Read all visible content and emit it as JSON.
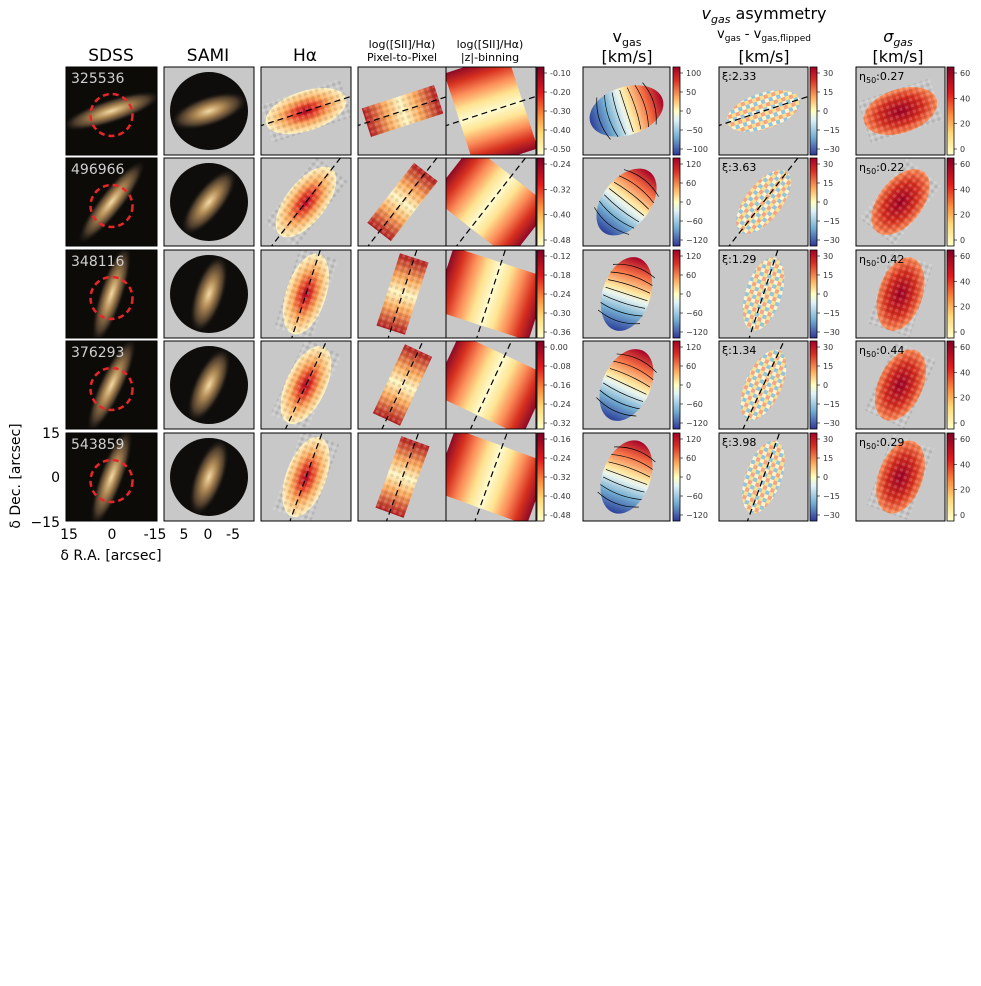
{
  "headers": {
    "sdss": "SDSS",
    "sami": "SAMI",
    "halpha": "Hα",
    "ratio_pp_l1": "log([SII]/Hα)",
    "ratio_pp_l2": "Pixel-to-Pixel",
    "ratio_z_l1": "log([SII]/Hα)",
    "ratio_z_l2": "|z|-binning",
    "vgas_l1": "v",
    "vgas_sub": "gas",
    "vgas_l2": "[km/s]",
    "asym_l1_sym": "v",
    "asym_l1_sub": "gas",
    "asym_l1_rest": " asymmetry",
    "asym_l2": "v",
    "asym_l2_sub1": "gas",
    "asym_l2_mid": " - v",
    "asym_l2_sub2": "gas,flipped",
    "asym_l3": "[km/s]",
    "sigma_l1": "σ",
    "sigma_sub": "gas",
    "sigma_l2": "[km/s]"
  },
  "axes": {
    "y_label": "δ Dec. [arcsec]",
    "x_label": "δ R.A. [arcsec]",
    "sdss_y_ticks": [
      "15",
      "0",
      "−15"
    ],
    "sdss_x_ticks": [
      "15",
      "0",
      "-15"
    ],
    "sami_x_ticks": [
      "5",
      "0",
      "-5"
    ]
  },
  "galaxies": [
    {
      "id": "325536",
      "xi": "ξ:2.33",
      "eta": "η",
      "eta_sub": "50",
      "eta_val": ":0.27",
      "pa": -18,
      "axis": 0.42
    },
    {
      "id": "496966",
      "xi": "ξ:3.63",
      "eta": "η",
      "eta_sub": "50",
      "eta_val": ":0.22",
      "pa": -52,
      "axis": 0.45
    },
    {
      "id": "348116",
      "xi": "ξ:1.29",
      "eta": "η",
      "eta_sub": "50",
      "eta_val": ":0.42",
      "pa": -72,
      "axis": 0.5
    },
    {
      "id": "376293",
      "xi": "ξ:1.34",
      "eta": "η",
      "eta_sub": "50",
      "eta_val": ":0.44",
      "pa": -65,
      "axis": 0.5
    },
    {
      "id": "543859",
      "xi": "ξ:3.98",
      "eta": "η",
      "eta_sub": "50",
      "eta_val": ":0.29",
      "pa": -70,
      "axis": 0.5
    }
  ],
  "colorbars": {
    "ratio_pp": [
      [
        "-0.10",
        "-0.20",
        "-0.30",
        "-0.40",
        "-0.50"
      ],
      [
        "-0.24",
        "-0.32",
        "-0.40",
        "-0.48"
      ],
      [
        "-0.12",
        "-0.18",
        "-0.24",
        "-0.30",
        "-0.36"
      ],
      [
        "0.00",
        "-0.08",
        "-0.16",
        "-0.24",
        "-0.32"
      ],
      [
        "-0.16",
        "-0.24",
        "-0.32",
        "-0.40",
        "-0.48"
      ]
    ],
    "vgas": [
      [
        "100",
        "50",
        "0",
        "−50",
        "−100"
      ],
      [
        "120",
        "60",
        "0",
        "−60",
        "−120"
      ],
      [
        "120",
        "60",
        "0",
        "−60",
        "−120"
      ],
      [
        "120",
        "60",
        "0",
        "−60",
        "−120"
      ],
      [
        "120",
        "60",
        "0",
        "−60",
        "−120"
      ]
    ],
    "asym": [
      [
        "30",
        "15",
        "0",
        "−15",
        "−30"
      ],
      [
        "30",
        "15",
        "0",
        "−15",
        "−30"
      ],
      [
        "30",
        "15",
        "0",
        "−15",
        "−30"
      ],
      [
        "30",
        "15",
        "0",
        "−15",
        "−30"
      ],
      [
        "30",
        "15",
        "0",
        "−15",
        "−30"
      ]
    ],
    "sigma": [
      [
        "60",
        "40",
        "20",
        "0"
      ],
      [
        "60",
        "40",
        "20",
        "0"
      ],
      [
        "60",
        "40",
        "20",
        "0"
      ],
      [
        "60",
        "40",
        "20",
        "0"
      ],
      [
        "60",
        "40",
        "20",
        "0"
      ]
    ]
  },
  "colors": {
    "panel_bg": "#c8c8c8",
    "sdss_bg": "#0c0b08",
    "dashed_circle": "#e8262a",
    "id_label": "#cfcfcf"
  }
}
